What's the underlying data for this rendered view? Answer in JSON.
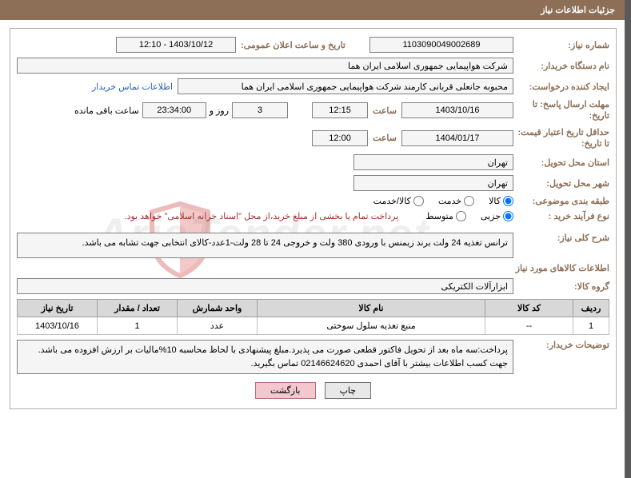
{
  "header": {
    "title": "جزئیات اطلاعات نیاز"
  },
  "form": {
    "need_number_label": "شماره نیاز:",
    "need_number": "1103090049002689",
    "announce_label": "تاریخ و ساعت اعلان عمومی:",
    "announce_value": "1403/10/12 - 12:10",
    "buyer_device_label": "نام دستگاه خریدار:",
    "buyer_device": "شرکت هواپیمایی جمهوری اسلامی ایران هما",
    "creator_label": "ایجاد کننده درخواست:",
    "creator": "محبوبه جانعلی قربانی کارمند شرکت هواپیمایی جمهوری اسلامی ایران هما",
    "contact_link": "اطلاعات تماس خریدار",
    "deadline_label": "مهلت ارسال پاسخ: تا تاریخ:",
    "deadline_date": "1403/10/16",
    "saat_label": "ساعت",
    "deadline_time": "12:15",
    "days_remaining": "3",
    "rooz_va": "روز و",
    "countdown": "23:34:00",
    "remaining_label": "ساعت باقی مانده",
    "validity_label": "حداقل تاریخ اعتبار قیمت: تا تاریخ:",
    "validity_date": "1404/01/17",
    "validity_time": "12:00",
    "province_label": "استان محل تحویل:",
    "province": "تهران",
    "city_label": "شهر محل تحویل:",
    "city": "تهران",
    "category_subject_label": "طبقه بندی موضوعی:",
    "radio_kala": "کالا",
    "radio_khadamat": "خدمت",
    "radio_both": "کالا/خدمت",
    "purchase_type_label": "نوع فرآیند خرید :",
    "radio_jozi": "جزیی",
    "radio_motavasset": "متوسط",
    "purchase_note": "پرداخت تمام یا بخشی از مبلغ خرید،از محل \"اسناد خزانه اسلامی\" خواهد بود.",
    "need_desc_label": "شرح کلی نیاز:",
    "need_desc": "ترانس تغذیه 24 ولت برند زیمنس با ورودی 380 ولت و خروجی 24 تا 28 ولت-1عدد-کالای انتخابی جهت تشابه می باشد.",
    "goods_info_title": "اطلاعات کالاهای مورد نیاز",
    "goods_group_label": "گروه کالا:",
    "goods_group": "ابزارآلات الکتریکی",
    "buyer_notes_label": "توضیحات خریدار:",
    "buyer_notes": "پرداخت:سه ماه بعد از تحویل فاکتور قطعی صورت می پذیرد.مبلغ پیشنهادی با لحاظ محاسبه 10%مالیات بر ارزش افزوده می باشد. جهت کسب اطلاعات بیشتر با آقای احمدی 02146624620 تماس بگیرید."
  },
  "table": {
    "headers": {
      "row": "ردیف",
      "code": "کد کالا",
      "name": "نام کالا",
      "unit": "واحد شمارش",
      "qty": "تعداد / مقدار",
      "date": "تاریخ نیاز"
    },
    "rows": [
      {
        "row": "1",
        "code": "--",
        "name": "منبع تغذیه سلول سوختی",
        "unit": "عدد",
        "qty": "1",
        "date": "1403/10/16"
      }
    ]
  },
  "buttons": {
    "print": "چاپ",
    "back": "بازگشت"
  },
  "watermark": "AriaTender.net"
}
